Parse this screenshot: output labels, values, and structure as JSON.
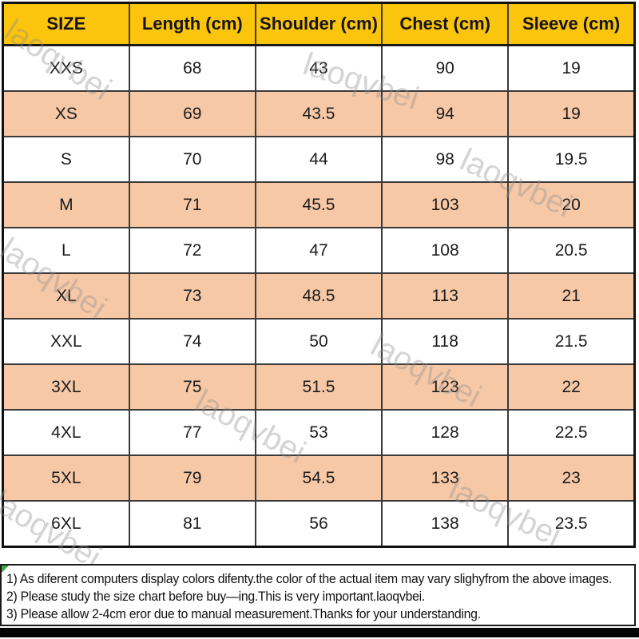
{
  "chart_data": {
    "type": "table",
    "title": "",
    "columns": [
      "SIZE",
      "Length (cm)",
      "Shoulder (cm)",
      "Chest (cm)",
      "Sleeve (cm)"
    ],
    "rows": [
      [
        "XXS",
        "68",
        "43",
        "90",
        "19"
      ],
      [
        "XS",
        "69",
        "43.5",
        "94",
        "19"
      ],
      [
        "S",
        "70",
        "44",
        "98",
        "19.5"
      ],
      [
        "M",
        "71",
        "45.5",
        "103",
        "20"
      ],
      [
        "L",
        "72",
        "47",
        "108",
        "20.5"
      ],
      [
        "XL",
        "73",
        "48.5",
        "113",
        "21"
      ],
      [
        "XXL",
        "74",
        "50",
        "118",
        "21.5"
      ],
      [
        "3XL",
        "75",
        "51.5",
        "123",
        "22"
      ],
      [
        "4XL",
        "77",
        "53",
        "128",
        "22.5"
      ],
      [
        "5XL",
        "79",
        "54.5",
        "133",
        "23"
      ],
      [
        "6XL",
        "81",
        "56",
        "138",
        "23.5"
      ]
    ],
    "layout_hints": {
      "striped_rows": "every second data row shaded peach",
      "header_fill": "golden yellow",
      "grid": "on"
    }
  },
  "notes": {
    "lines": [
      "1) As diferent computers display colors difenty.the color of the actual item may vary slighyfrom the above images.",
      "2) Please study the size chart before buy—ing.This is very important.laoqvbei.",
      "3) Please allow 2-4cm eror due to manual measurement.Thanks for your understanding."
    ]
  },
  "watermark": {
    "text": "laoqvbei"
  },
  "colors": {
    "header_bg": "#FBC40D",
    "row_alt_bg": "#F6C8A6",
    "border_dark": "#1a1a1a",
    "note_marker_green": "#3FA33F",
    "watermark_gray": "#8f8f8f"
  }
}
